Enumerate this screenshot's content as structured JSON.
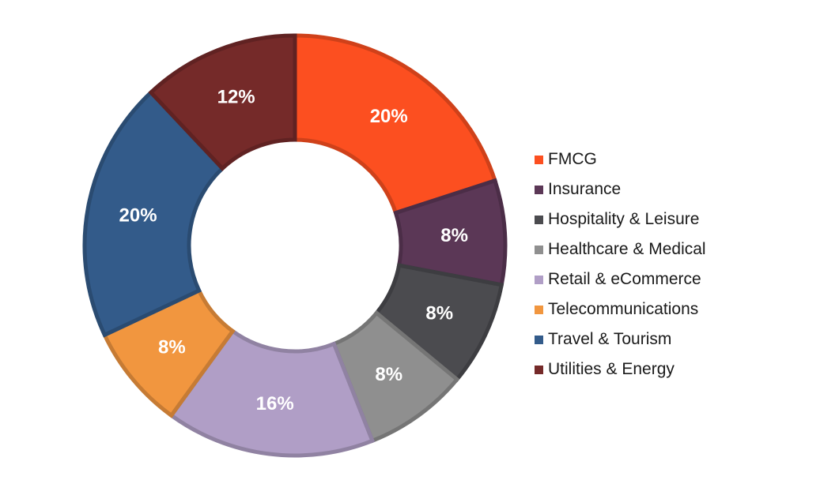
{
  "chart_data": {
    "type": "pie",
    "style": "donut",
    "categories": [
      "FMCG",
      "Insurance",
      "Hospitality & Leisure",
      "Healthcare & Medical",
      "Retail & eCommerce",
      "Telecommunications",
      "Travel & Tourism",
      "Utilities & Energy"
    ],
    "values": [
      20,
      8,
      8,
      8,
      16,
      8,
      20,
      12
    ],
    "data_labels": [
      "20%",
      "8%",
      "8%",
      "8%",
      "16%",
      "8%",
      "20%",
      "12%"
    ],
    "colors": [
      "#fc4f20",
      "#5b3756",
      "#4b4b4f",
      "#8f8f8f",
      "#b09ec6",
      "#f1963f",
      "#335b8a",
      "#752a29"
    ],
    "legend_position": "right",
    "start_angle": "12 o'clock",
    "direction": "clockwise"
  }
}
